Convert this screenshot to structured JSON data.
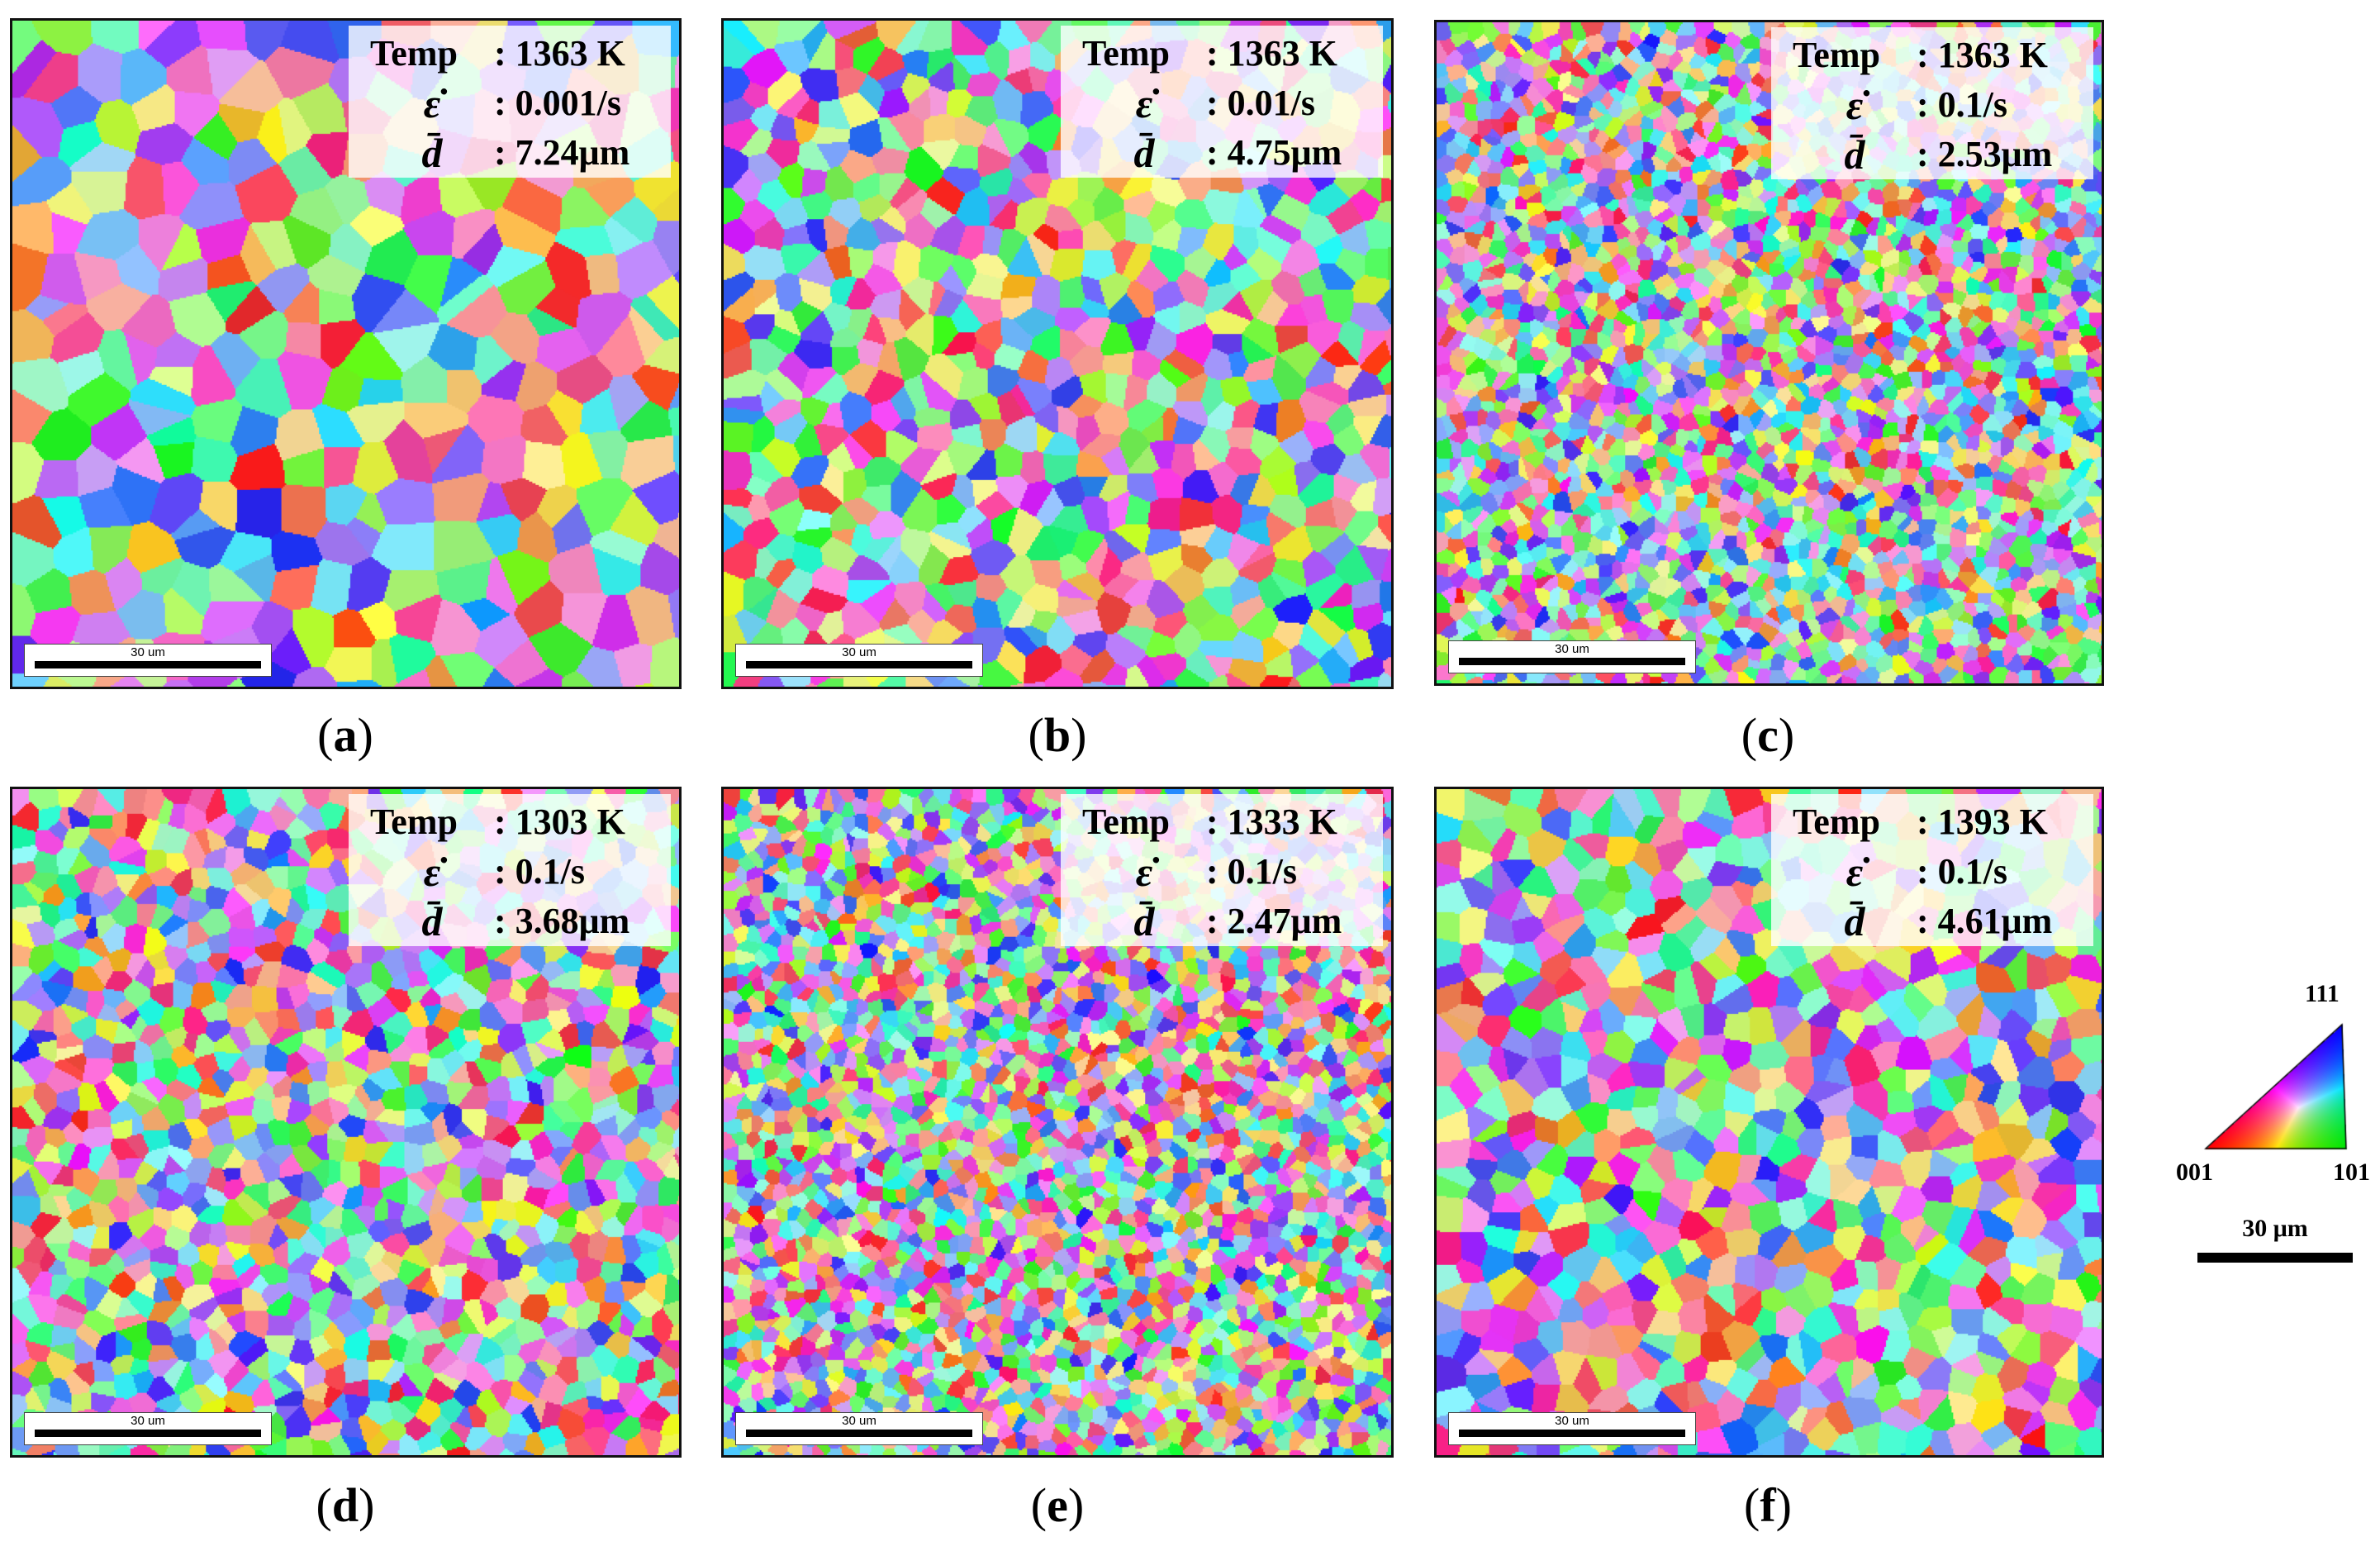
{
  "panels": [
    {
      "caption_letter": "a",
      "temp_label": "Temp",
      "temp_value": ": 1363 K",
      "rate_value": ": 0.001/s",
      "d_value": ":  7.24μm",
      "scale_text": "30 um",
      "grain_size_um": 7.24
    },
    {
      "caption_letter": "b",
      "temp_label": "Temp",
      "temp_value": ": 1363 K",
      "rate_value": ": 0.01/s",
      "d_value": ":  4.75μm",
      "scale_text": "30 um",
      "grain_size_um": 4.75
    },
    {
      "caption_letter": "c",
      "temp_label": "Temp",
      "temp_value": ": 1363 K",
      "rate_value": ": 0.1/s",
      "d_value": ":  2.53μm",
      "scale_text": "30 um",
      "grain_size_um": 2.53
    },
    {
      "caption_letter": "d",
      "temp_label": "Temp",
      "temp_value": ": 1303 K",
      "rate_value": ": 0.1/s",
      "d_value": ":  3.68μm",
      "scale_text": "30 um",
      "grain_size_um": 3.68
    },
    {
      "caption_letter": "e",
      "temp_label": "Temp",
      "temp_value": ": 1333 K",
      "rate_value": ": 0.1/s",
      "d_value": ":  2.47μm",
      "scale_text": "30 um",
      "grain_size_um": 2.47
    },
    {
      "caption_letter": "f",
      "temp_label": "Temp",
      "temp_value": ": 1393 K",
      "rate_value": ": 0.1/s",
      "d_value": ":  4.61μm",
      "scale_text": "30 um",
      "grain_size_um": 4.61
    }
  ],
  "symbols": {
    "strain_rate": "ε̇",
    "grain_size": "d̄"
  },
  "legend": {
    "top_label": "111",
    "left_label": "001",
    "right_label": "101",
    "scale_label": "30 μm",
    "colors": {
      "001": "#ff0000",
      "101": "#00cc00",
      "111": "#0000ff"
    }
  }
}
